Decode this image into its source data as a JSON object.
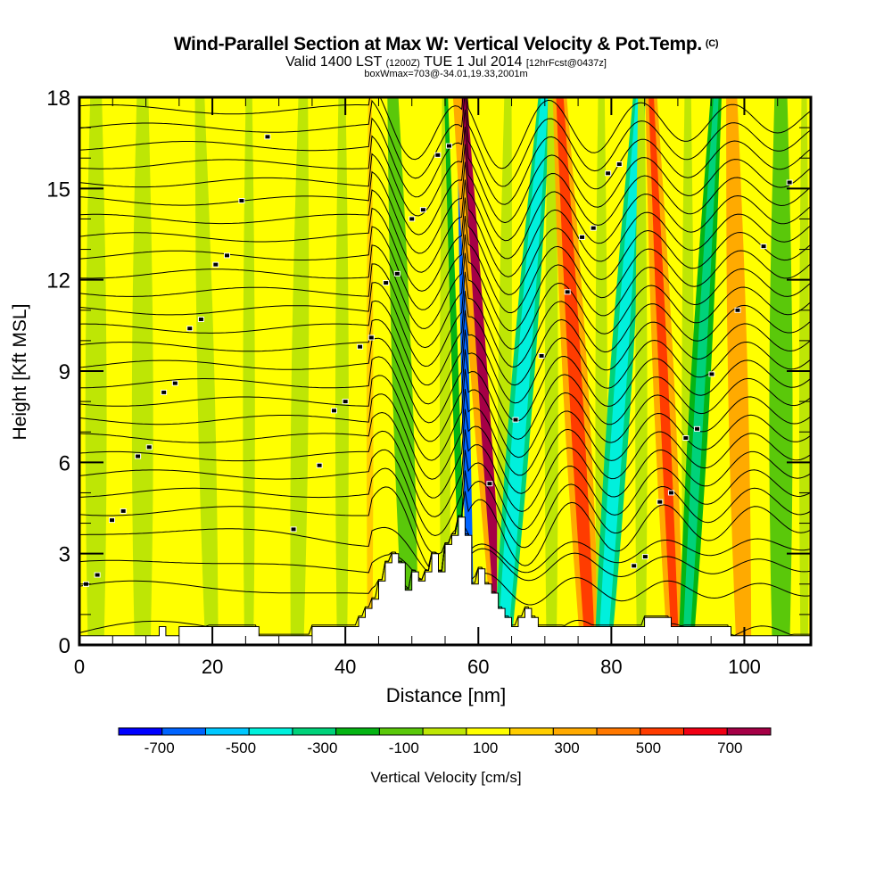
{
  "header": {
    "title": "Wind-Parallel Section at Max W: Vertical Velocity & Pot.Temp.",
    "copyright": "(C)",
    "valid_prefix": "Valid 1400 LST",
    "valid_utc": "(1200Z)",
    "valid_date": "TUE 1 Jul 2014",
    "forecast": "[12hrFcst@0437z]",
    "boxinfo": "boxWmax=703@-34.01,19.33,2001m"
  },
  "chart_data": {
    "type": "heatmap",
    "title": "Wind-Parallel Section at Max W: Vertical Velocity & Pot.Temp.",
    "xlabel": "Distance [nm]",
    "ylabel": "Height [Kft MSL]",
    "xlim": [
      0,
      110
    ],
    "ylim": [
      0,
      18
    ],
    "xticks": [
      0,
      20,
      40,
      60,
      80,
      100
    ],
    "xtick_labels": [
      "0",
      "20",
      "40",
      "60",
      "80",
      "100"
    ],
    "x_minor_step": 5,
    "yticks": [
      0,
      3,
      6,
      9,
      12,
      15,
      18
    ],
    "ytick_labels": [
      "0",
      "3",
      "6",
      "9",
      "12",
      "15",
      "18"
    ],
    "y_minor_step": 1,
    "colorbar": {
      "label": "Vertical Velocity [cm/s]",
      "bounds": [
        -800,
        -700,
        -600,
        -500,
        -400,
        -300,
        -200,
        -100,
        0,
        100,
        200,
        300,
        400,
        500,
        600,
        700,
        800
      ],
      "tick_values": [
        -700,
        -500,
        -300,
        -100,
        100,
        300,
        500,
        700
      ],
      "tick_labels": [
        "-700",
        "-500",
        "-300",
        "-100",
        "100",
        "300",
        "500",
        "700"
      ],
      "colors": [
        "#0000ff",
        "#0064ff",
        "#00c8ff",
        "#00f0dc",
        "#00d27a",
        "#05b414",
        "#5ac80a",
        "#bee605",
        "#ffff00",
        "#ffcd00",
        "#ffaa00",
        "#ff7800",
        "#ff3c00",
        "#f00014",
        "#a50046"
      ]
    },
    "background_value_cms": 50,
    "velocity_bands": [
      {
        "x": 2.5,
        "width": 3.2,
        "value": -50,
        "tilt": 0
      },
      {
        "x": 9.5,
        "width": 3.2,
        "value": -50,
        "tilt": 0
      },
      {
        "x": 19.0,
        "width": 2.6,
        "value": -50,
        "tilt": -0.1
      },
      {
        "x": 25.5,
        "width": 1.8,
        "value": -50,
        "tilt": 0
      },
      {
        "x": 33.2,
        "width": 2.6,
        "value": -50,
        "tilt": 0.05
      },
      {
        "x": 39.5,
        "width": 2.0,
        "value": -50,
        "tilt": 0.0
      },
      {
        "x": 43.7,
        "width": 1.0,
        "value": 150,
        "tilt": 0
      },
      {
        "x": 48.5,
        "width": 3.0,
        "value": -150,
        "tilt": -0.15
      },
      {
        "x": 55.0,
        "width": 1.6,
        "value": -50,
        "tilt": 0
      },
      {
        "x": 56.5,
        "width": 1.0,
        "value": -250,
        "tilt": -0.15
      },
      {
        "x": 58.0,
        "width": 1.2,
        "value": -650,
        "tilt": -0.1
      },
      {
        "x": 60.0,
        "width": 2.4,
        "value": 250,
        "tilt": -0.35
      },
      {
        "x": 60.6,
        "width": 1.5,
        "value": 650,
        "tilt": -0.3
      },
      {
        "x": 64.0,
        "width": 2.0,
        "value": -50,
        "tilt": 0.05
      },
      {
        "x": 66.8,
        "width": 3.4,
        "value": -350,
        "tilt": 0.35
      },
      {
        "x": 66.8,
        "width": 2.0,
        "value": -450,
        "tilt": 0.35
      },
      {
        "x": 71.0,
        "width": 2.0,
        "value": -50,
        "tilt": 0
      },
      {
        "x": 74.5,
        "width": 3.8,
        "value": 250,
        "tilt": -0.25
      },
      {
        "x": 74.5,
        "width": 2.0,
        "value": 450,
        "tilt": -0.25
      },
      {
        "x": 78.5,
        "width": 1.8,
        "value": -50,
        "tilt": 0
      },
      {
        "x": 81.5,
        "width": 3.4,
        "value": -350,
        "tilt": 0.3
      },
      {
        "x": 81.5,
        "width": 1.8,
        "value": -450,
        "tilt": 0.3
      },
      {
        "x": 84.5,
        "width": 1.8,
        "value": -50,
        "tilt": 0
      },
      {
        "x": 87.8,
        "width": 3.2,
        "value": 250,
        "tilt": -0.2
      },
      {
        "x": 87.8,
        "width": 1.4,
        "value": 450,
        "tilt": -0.2
      },
      {
        "x": 91.5,
        "width": 1.8,
        "value": -50,
        "tilt": 0
      },
      {
        "x": 93.5,
        "width": 3.0,
        "value": -250,
        "tilt": 0.25
      },
      {
        "x": 93.5,
        "width": 1.4,
        "value": -350,
        "tilt": 0.25
      },
      {
        "x": 99.0,
        "width": 3.0,
        "value": 250,
        "tilt": -0.1
      },
      {
        "x": 105.5,
        "width": 3.5,
        "value": -150,
        "tilt": 0
      },
      {
        "x": 109.0,
        "width": 1.5,
        "value": -50,
        "tilt": 0
      }
    ],
    "isentrope_levels_kft": [
      0.4,
      1.8,
      2.6,
      3.6,
      4.4,
      5.0,
      5.6,
      6.2,
      6.8,
      7.4,
      8.0,
      8.6,
      9.2,
      9.8,
      10.4,
      11.0,
      11.6,
      12.2,
      12.8,
      13.4,
      14.0,
      14.6,
      15.2,
      15.8,
      16.4,
      17.0,
      17.6
    ],
    "terrain_kft": [
      [
        0,
        0.3
      ],
      [
        12,
        0.3
      ],
      [
        12,
        0.6
      ],
      [
        13,
        0.6
      ],
      [
        13,
        0.3
      ],
      [
        15,
        0.3
      ],
      [
        15,
        0.6
      ],
      [
        27,
        0.6
      ],
      [
        27,
        0.3
      ],
      [
        35,
        0.3
      ],
      [
        35,
        0.6
      ],
      [
        42,
        0.6
      ],
      [
        42,
        0.9
      ],
      [
        43,
        0.9
      ],
      [
        43,
        1.2
      ],
      [
        44,
        1.2
      ],
      [
        44,
        1.5
      ],
      [
        45,
        1.5
      ],
      [
        45,
        2.1
      ],
      [
        46,
        2.1
      ],
      [
        46,
        2.7
      ],
      [
        47,
        2.7
      ],
      [
        47,
        3.0
      ],
      [
        48,
        3.0
      ],
      [
        48,
        2.7
      ],
      [
        49,
        2.7
      ],
      [
        49,
        1.8
      ],
      [
        50,
        1.8
      ],
      [
        50,
        2.4
      ],
      [
        51,
        2.4
      ],
      [
        51,
        2.1
      ],
      [
        52,
        2.1
      ],
      [
        52,
        2.4
      ],
      [
        53,
        2.4
      ],
      [
        53,
        3.0
      ],
      [
        54,
        3.0
      ],
      [
        54,
        2.4
      ],
      [
        55,
        2.4
      ],
      [
        55,
        3.3
      ],
      [
        56,
        3.3
      ],
      [
        56,
        3.6
      ],
      [
        57,
        3.6
      ],
      [
        57,
        4.2
      ],
      [
        58,
        4.2
      ],
      [
        58,
        3.6
      ],
      [
        59,
        3.6
      ],
      [
        59,
        2.0
      ],
      [
        60,
        2.0
      ],
      [
        60,
        2.5
      ],
      [
        61,
        2.5
      ],
      [
        61,
        2.0
      ],
      [
        62,
        2.0
      ],
      [
        62,
        1.7
      ],
      [
        63,
        1.7
      ],
      [
        63,
        1.2
      ],
      [
        64,
        1.2
      ],
      [
        64,
        0.9
      ],
      [
        65,
        0.9
      ],
      [
        65,
        0.6
      ],
      [
        66,
        0.6
      ],
      [
        66,
        0.9
      ],
      [
        67,
        0.9
      ],
      [
        67,
        1.2
      ],
      [
        68,
        1.2
      ],
      [
        68,
        0.9
      ],
      [
        69,
        0.9
      ],
      [
        69,
        0.6
      ],
      [
        72,
        0.6
      ],
      [
        72,
        0.6
      ],
      [
        85,
        0.6
      ],
      [
        85,
        0.9
      ],
      [
        89,
        0.9
      ],
      [
        89,
        0.6
      ],
      [
        98,
        0.6
      ],
      [
        98,
        0.3
      ],
      [
        110,
        0.3
      ]
    ],
    "isentrope_label_count": 45
  }
}
